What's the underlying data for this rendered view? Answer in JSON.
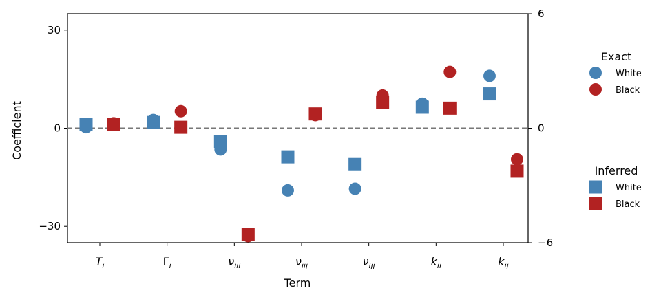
{
  "chart_data": {
    "type": "scatter",
    "categories": [
      "T_i",
      "Γ_i",
      "ν_iii",
      "ν_iij",
      "ν_ijj",
      "k_ii",
      "k_ij"
    ],
    "xlabel": "Term",
    "ylabel": "Coefficient",
    "ylim_left": [
      -35,
      35
    ],
    "yticks_left": [
      -30,
      0,
      30
    ],
    "ylim_right": [
      -6,
      6
    ],
    "yticks_right": [
      -6,
      0,
      6
    ],
    "tick_labels_left": [
      "−30",
      "0",
      "30"
    ],
    "tick_labels_right": [
      "−6",
      "0",
      "6"
    ],
    "zero_line": true,
    "grid": false,
    "legends": [
      {
        "title": "Exact",
        "marker": "circle",
        "entries": [
          {
            "label": "White",
            "color": "#4682b4"
          },
          {
            "label": "Black",
            "color": "#b22222"
          }
        ]
      },
      {
        "title": "Inferred",
        "marker": "square",
        "entries": [
          {
            "label": "White",
            "color": "#4682b4"
          },
          {
            "label": "Black",
            "color": "#b22222"
          }
        ]
      }
    ],
    "legend_placement": "outside-right",
    "series": [
      {
        "group": "Exact",
        "label": "White",
        "marker": "circle",
        "color": "#4682b4",
        "axis": "left",
        "values": [
          0.3,
          2.5,
          -6.5,
          -19.0,
          -18.5,
          7.5,
          16.0
        ]
      },
      {
        "group": "Exact",
        "label": "Black",
        "marker": "circle",
        "color": "#b22222",
        "axis": "left",
        "values": [
          1.5,
          5.2,
          -33.0,
          4.0,
          10.0,
          17.2,
          -9.5
        ]
      },
      {
        "group": "Inferred",
        "label": "White",
        "marker": "square",
        "color": "#4682b4",
        "axis": "right",
        "values": [
          0.2,
          0.3,
          -0.7,
          -1.5,
          -1.9,
          1.1,
          1.8
        ]
      },
      {
        "group": "Inferred",
        "label": "Black",
        "marker": "square",
        "color": "#b22222",
        "axis": "right",
        "values": [
          0.2,
          0.05,
          -5.55,
          0.75,
          1.35,
          1.05,
          -2.25
        ]
      }
    ]
  }
}
